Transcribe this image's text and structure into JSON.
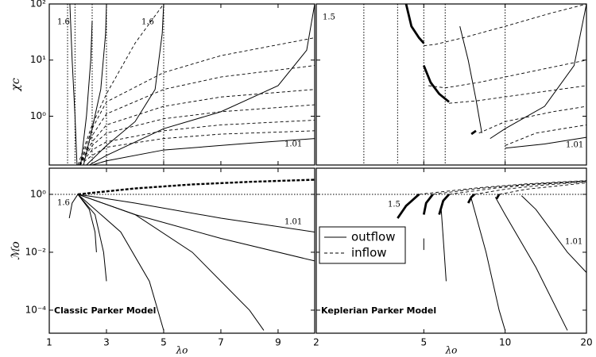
{
  "chart_data": [
    {
      "type": "line",
      "color": "#000000",
      "xlim": [
        1,
        10.28
      ],
      "ylim": [
        0.135,
        100
      ],
      "ylog": true,
      "xticks": [
        1,
        3,
        5,
        7,
        9
      ],
      "yticks": [
        {
          "value": 1,
          "label": "10⁰"
        },
        {
          "value": 10,
          "label": "10¹"
        },
        {
          "value": 100,
          "label": "10²"
        }
      ],
      "ylabel": "χc",
      "vlines": [
        1.64,
        1.9,
        2.5,
        3,
        5
      ],
      "annotations": [
        "1.6",
        "1.6",
        "1.01"
      ],
      "series": [
        {
          "style": "solid",
          "x": [
            1.72,
            1.8,
            1.9,
            1.97
          ],
          "y": [
            100,
            10,
            1,
            0.135
          ]
        },
        {
          "style": "solid",
          "x": [
            2.1,
            2.3,
            2.45,
            2.5
          ],
          "y": [
            0.135,
            1,
            10,
            50
          ]
        },
        {
          "style": "solid",
          "x": [
            2.2,
            2.5,
            2.8,
            2.97,
            3.0
          ],
          "y": [
            0.135,
            0.6,
            3,
            30,
            100
          ]
        },
        {
          "style": "solid",
          "x": [
            2.3,
            3,
            4,
            4.7,
            4.95,
            5
          ],
          "y": [
            0.135,
            0.3,
            0.8,
            3,
            30,
            100
          ]
        },
        {
          "style": "solid",
          "x": [
            2.4,
            3,
            5,
            7,
            9,
            10,
            10.28
          ],
          "y": [
            0.135,
            0.2,
            0.6,
            1.2,
            3.5,
            15,
            100
          ]
        },
        {
          "style": "solid",
          "x": [
            2.5,
            3,
            5,
            8,
            10.28
          ],
          "y": [
            0.135,
            0.16,
            0.25,
            0.33,
            0.4
          ]
        },
        {
          "style": "dashed",
          "x": [
            2.0,
            2.5,
            3,
            4,
            5
          ],
          "y": [
            0.135,
            0.7,
            2.5,
            20,
            100
          ]
        },
        {
          "style": "dashed",
          "x": [
            2.05,
            2.5,
            3,
            5,
            7,
            10.28
          ],
          "y": [
            0.135,
            0.6,
            1.8,
            6,
            12,
            25
          ]
        },
        {
          "style": "dashed",
          "x": [
            2.05,
            2.5,
            3,
            5,
            7,
            10.28
          ],
          "y": [
            0.135,
            0.45,
            1.1,
            3,
            5,
            8
          ]
        },
        {
          "style": "dashed",
          "x": [
            2.05,
            2.5,
            3,
            5,
            7,
            10.28
          ],
          "y": [
            0.135,
            0.35,
            0.7,
            1.5,
            2.2,
            3
          ]
        },
        {
          "style": "dashed",
          "x": [
            2.05,
            2.5,
            3,
            5,
            7,
            10.28
          ],
          "y": [
            0.135,
            0.3,
            0.5,
            0.9,
            1.2,
            1.6
          ]
        },
        {
          "style": "dashed",
          "x": [
            2.05,
            2.5,
            3,
            5,
            7,
            10.28
          ],
          "y": [
            0.135,
            0.25,
            0.35,
            0.55,
            0.7,
            0.85
          ]
        },
        {
          "style": "dashed",
          "x": [
            2.05,
            2.5,
            3,
            5,
            7,
            10.28
          ],
          "y": [
            0.135,
            0.2,
            0.28,
            0.4,
            0.48,
            0.55
          ]
        }
      ]
    },
    {
      "type": "line",
      "color": "#000000",
      "xlim": [
        2,
        20
      ],
      "xlog": true,
      "ylim": [
        0.135,
        100
      ],
      "ylog": true,
      "xticks": [
        2,
        5,
        10,
        20
      ],
      "yticks": [
        1,
        10,
        100
      ],
      "vlines": [
        3,
        4,
        5,
        6,
        10
      ],
      "annotations": [
        "1.5",
        "1.01"
      ],
      "series": [
        {
          "style": "bold",
          "x": [
            4.3,
            4.5,
            4.8,
            5
          ],
          "y": [
            100,
            40,
            25,
            20
          ]
        },
        {
          "style": "dashed",
          "x": [
            5,
            5.5,
            7,
            10,
            15,
            20
          ],
          "y": [
            18,
            19,
            25,
            40,
            70,
            100
          ]
        },
        {
          "style": "bold",
          "x": [
            5,
            5.3,
            5.7,
            6.2
          ],
          "y": [
            8,
            4,
            2.5,
            1.8
          ]
        },
        {
          "style": "solid",
          "x": [
            6.8,
            7.3,
            7.8,
            8.2
          ],
          "y": [
            40,
            10,
            2,
            0.5
          ]
        },
        {
          "style": "dashed",
          "x": [
            5.2,
            6,
            8,
            12,
            20
          ],
          "y": [
            3.5,
            3.2,
            4,
            6,
            10
          ]
        },
        {
          "style": "dashed",
          "x": [
            6.2,
            8,
            12,
            20
          ],
          "y": [
            1.7,
            1.9,
            2.5,
            3.5
          ]
        },
        {
          "style": "bold",
          "x": [
            7.5,
            7.8
          ],
          "y": [
            0.48,
            0.55
          ]
        },
        {
          "style": "solid",
          "x": [
            8.8,
            10,
            14,
            18,
            20
          ],
          "y": [
            0.4,
            0.6,
            1.5,
            8,
            100
          ]
        },
        {
          "style": "dashed",
          "x": [
            8,
            10,
            15,
            20
          ],
          "y": [
            0.5,
            0.8,
            1.2,
            1.5
          ]
        },
        {
          "style": "dashed",
          "x": [
            10,
            13,
            20
          ],
          "y": [
            0.3,
            0.5,
            0.7
          ]
        },
        {
          "style": "solid",
          "x": [
            10,
            14,
            20
          ],
          "y": [
            0.27,
            0.32,
            0.42
          ]
        }
      ]
    },
    {
      "type": "line",
      "color": "#000000",
      "xlim": [
        1,
        10.28
      ],
      "ylim": [
        1.6e-05,
        8
      ],
      "ylog": true,
      "xticks": [
        1,
        3,
        5,
        7,
        9
      ],
      "yticks": [
        {
          "value": 0.0001,
          "label": "10⁻⁴"
        },
        {
          "value": 0.01,
          "label": "10⁻²"
        },
        {
          "value": 1,
          "label": "10⁰"
        }
      ],
      "xlabel": "λo",
      "ylabel": "ℳo",
      "hlines": [
        1
      ],
      "annotations": [
        "1.6",
        "1.01"
      ],
      "label": "Classic Parker Model",
      "series": [
        {
          "style": "bold-dashed",
          "x": [
            2,
            4,
            6,
            8,
            10.28
          ],
          "y": [
            1,
            1.6,
            2.2,
            2.7,
            3.2
          ]
        },
        {
          "style": "solid",
          "x": [
            1.7,
            1.8,
            2
          ],
          "y": [
            0.15,
            0.5,
            1
          ]
        },
        {
          "style": "solid",
          "x": [
            2,
            2.4,
            2.6,
            2.65
          ],
          "y": [
            1,
            0.3,
            0.05,
            0.01
          ]
        },
        {
          "style": "solid",
          "x": [
            2,
            2.6,
            2.9,
            3.0
          ],
          "y": [
            1,
            0.2,
            0.01,
            0.001
          ]
        },
        {
          "style": "solid",
          "x": [
            2,
            3.5,
            4.5,
            5
          ],
          "y": [
            1,
            0.05,
            0.001,
            2e-05
          ]
        },
        {
          "style": "solid",
          "x": [
            2,
            4,
            6,
            8,
            8.5
          ],
          "y": [
            1,
            0.2,
            0.01,
            0.0001,
            2e-05
          ]
        },
        {
          "style": "solid",
          "x": [
            2,
            4,
            7,
            10.28
          ],
          "y": [
            1,
            0.5,
            0.15,
            0.05
          ]
        },
        {
          "style": "solid",
          "x": [
            2,
            4,
            7,
            10.28
          ],
          "y": [
            1,
            0.2,
            0.03,
            0.005
          ]
        }
      ]
    },
    {
      "type": "line",
      "color": "#000000",
      "xlim": [
        2,
        20
      ],
      "xlog": true,
      "ylim": [
        1.6e-05,
        8
      ],
      "ylog": true,
      "xticks": [
        2,
        5,
        10,
        20
      ],
      "yticks": [
        0.0001,
        0.01,
        1
      ],
      "xlabel": "λo",
      "hlines": [
        1
      ],
      "annotations": [
        "1.5",
        "1.01"
      ],
      "label": "Keplerian Parker Model",
      "legend": [
        {
          "name": "outflow",
          "style": "solid"
        },
        {
          "name": "inflow",
          "style": "dashed"
        }
      ],
      "series": [
        {
          "style": "bold",
          "x": [
            4,
            4.3,
            4.8
          ],
          "y": [
            0.15,
            0.4,
            1
          ]
        },
        {
          "style": "dashed",
          "x": [
            4.8,
            8,
            12,
            20
          ],
          "y": [
            1,
            1.7,
            2.3,
            3
          ]
        },
        {
          "style": "bold",
          "x": [
            5,
            5.1,
            5.4
          ],
          "y": [
            0.2,
            0.5,
            1
          ]
        },
        {
          "style": "solid",
          "x": [
            5,
            5
          ],
          "y": [
            0.012,
            0.03
          ]
        },
        {
          "style": "dashed",
          "x": [
            5.4,
            8,
            12,
            20
          ],
          "y": [
            1,
            1.6,
            2.2,
            2.9
          ]
        },
        {
          "style": "bold",
          "x": [
            5.7,
            5.9,
            6.2
          ],
          "y": [
            0.2,
            0.6,
            1
          ]
        },
        {
          "style": "solid",
          "x": [
            5.8,
            5.95,
            6.05
          ],
          "y": [
            0.3,
            0.01,
            0.001
          ]
        },
        {
          "style": "dashed",
          "x": [
            6.2,
            9,
            13,
            20
          ],
          "y": [
            1,
            1.6,
            2.2,
            2.8
          ]
        },
        {
          "style": "bold",
          "x": [
            7.3,
            7.5,
            7.7
          ],
          "y": [
            0.5,
            0.8,
            1
          ]
        },
        {
          "style": "solid",
          "x": [
            7.5,
            8.5,
            9.5,
            10
          ],
          "y": [
            0.7,
            0.01,
            0.0001,
            2e-05
          ]
        },
        {
          "style": "dashed",
          "x": [
            7.7,
            10,
            14,
            20
          ],
          "y": [
            1,
            1.5,
            2.1,
            2.7
          ]
        },
        {
          "style": "bold",
          "x": [
            9.3,
            9.5
          ],
          "y": [
            0.7,
            1
          ]
        },
        {
          "style": "solid",
          "x": [
            9.2,
            10,
            13,
            17
          ],
          "y": [
            0.8,
            0.2,
            0.003,
            2e-05
          ]
        },
        {
          "style": "dashed",
          "x": [
            9.5,
            12,
            16,
            20
          ],
          "y": [
            1,
            1.5,
            2,
            2.5
          ]
        },
        {
          "style": "solid",
          "x": [
            11.5,
            13,
            17,
            20
          ],
          "y": [
            0.9,
            0.3,
            0.01,
            0.002
          ]
        }
      ]
    }
  ]
}
